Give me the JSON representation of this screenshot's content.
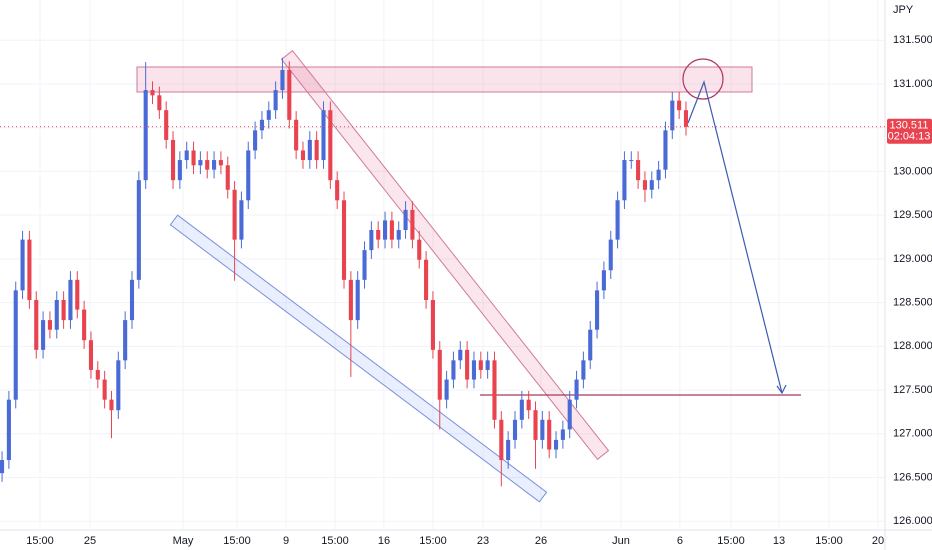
{
  "chart_data": {
    "type": "candlestick",
    "currency": "JPY",
    "up_color": "#4a6bd6",
    "down_color": "#e8434f",
    "open": [
      126.55,
      126.7,
      127.39,
      128.64,
      129.22,
      128.53,
      127.96,
      128.3,
      128.19,
      128.53,
      128.3,
      128.76,
      128.42,
      128.07,
      127.73,
      127.62,
      127.39,
      127.27,
      127.84,
      128.3,
      128.76,
      129.9,
      130.93,
      130.87,
      130.7,
      130.36,
      129.9,
      130.13,
      130.24,
      130.07,
      130.13,
      130.02,
      130.13,
      130.07,
      129.79,
      129.22,
      129.67,
      130.24,
      130.47,
      130.59,
      130.7,
      130.93,
      131.16,
      130.59,
      130.24,
      130.13,
      130.36,
      130.13,
      130.7,
      129.9,
      129.67,
      128.76,
      128.3,
      128.76,
      129.1,
      129.33,
      129.22,
      129.44,
      129.22,
      129.33,
      129.56,
      129.22,
      128.99,
      128.53,
      127.96,
      127.39,
      127.62,
      127.84,
      127.96,
      127.62,
      127.84,
      127.73,
      127.84,
      127.16,
      126.7,
      126.93,
      127.16,
      127.39,
      127.27,
      126.93,
      127.16,
      126.82,
      126.93,
      127.05,
      127.39,
      127.62,
      127.84,
      128.19,
      128.64,
      128.87,
      129.22,
      129.67,
      130.13,
      130.13,
      129.9,
      129.79,
      129.9,
      130.02,
      130.47,
      130.81,
      130.7
    ],
    "high": [
      126.8,
      127.49,
      128.74,
      129.32,
      129.32,
      128.63,
      128.4,
      128.4,
      128.63,
      128.63,
      128.86,
      128.86,
      128.52,
      128.17,
      127.83,
      127.72,
      127.49,
      127.94,
      128.4,
      128.86,
      130.0,
      131.25,
      131.03,
      130.97,
      130.8,
      130.46,
      130.23,
      130.34,
      130.34,
      130.23,
      130.23,
      130.23,
      130.23,
      130.17,
      129.89,
      129.77,
      130.34,
      130.57,
      130.69,
      130.8,
      131.03,
      131.3,
      131.26,
      130.69,
      130.34,
      130.46,
      130.46,
      130.8,
      130.8,
      130.0,
      129.77,
      128.86,
      128.86,
      129.2,
      129.43,
      129.43,
      129.54,
      129.54,
      129.43,
      129.66,
      129.66,
      129.32,
      129.09,
      128.63,
      128.06,
      127.72,
      127.94,
      128.06,
      128.06,
      127.94,
      127.94,
      127.94,
      127.94,
      127.26,
      127.03,
      127.26,
      127.49,
      127.49,
      127.37,
      127.26,
      127.26,
      127.03,
      127.15,
      127.49,
      127.72,
      127.94,
      128.29,
      128.74,
      128.97,
      129.32,
      129.77,
      130.23,
      130.23,
      130.23,
      130.0,
      130.0,
      130.12,
      130.57,
      130.91,
      130.91,
      130.8
    ],
    "low": [
      126.45,
      126.6,
      127.29,
      128.54,
      128.43,
      127.86,
      127.86,
      128.09,
      128.09,
      128.2,
      128.2,
      128.32,
      127.97,
      127.63,
      127.52,
      127.29,
      126.95,
      127.17,
      127.74,
      128.2,
      128.66,
      129.8,
      130.77,
      130.6,
      130.26,
      129.8,
      129.8,
      130.03,
      129.97,
      129.97,
      129.92,
      129.92,
      129.97,
      129.69,
      128.75,
      129.12,
      129.57,
      130.14,
      130.37,
      130.49,
      130.6,
      130.83,
      130.49,
      130.14,
      130.03,
      130.03,
      130.03,
      130.03,
      129.8,
      129.57,
      128.66,
      127.65,
      128.2,
      128.66,
      129.0,
      129.12,
      129.12,
      129.12,
      129.12,
      129.23,
      129.12,
      128.89,
      128.43,
      127.86,
      127.05,
      127.29,
      127.52,
      127.74,
      127.52,
      127.52,
      127.63,
      127.63,
      127.06,
      126.4,
      126.6,
      126.83,
      127.06,
      127.17,
      126.6,
      126.83,
      126.72,
      126.72,
      126.83,
      126.95,
      127.29,
      127.52,
      127.74,
      128.09,
      128.54,
      128.77,
      129.12,
      129.57,
      130.03,
      129.8,
      129.65,
      129.69,
      129.8,
      129.92,
      130.37,
      130.6,
      130.41
    ],
    "close": [
      126.7,
      127.39,
      128.64,
      129.22,
      128.53,
      127.96,
      128.3,
      128.19,
      128.53,
      128.3,
      128.76,
      128.42,
      128.07,
      127.73,
      127.62,
      127.39,
      127.27,
      127.84,
      128.3,
      128.76,
      129.9,
      130.93,
      130.87,
      130.7,
      130.36,
      129.9,
      130.13,
      130.24,
      130.07,
      130.13,
      130.02,
      130.13,
      130.07,
      129.79,
      129.22,
      129.67,
      130.24,
      130.47,
      130.59,
      130.7,
      130.93,
      131.16,
      130.59,
      130.24,
      130.13,
      130.36,
      130.13,
      130.7,
      129.9,
      129.67,
      128.76,
      128.3,
      128.76,
      129.1,
      129.33,
      129.22,
      129.44,
      129.22,
      129.33,
      129.56,
      129.22,
      128.99,
      128.53,
      127.96,
      127.39,
      127.62,
      127.84,
      127.96,
      127.62,
      127.84,
      127.73,
      127.84,
      127.16,
      126.7,
      126.93,
      127.16,
      127.39,
      127.27,
      126.93,
      127.16,
      126.82,
      126.93,
      127.05,
      127.39,
      127.62,
      127.84,
      128.19,
      128.64,
      128.87,
      129.22,
      129.67,
      130.13,
      130.13,
      129.9,
      129.79,
      129.9,
      130.02,
      130.47,
      130.81,
      130.7,
      130.51
    ],
    "xlim": [
      -0.3,
      129.1
    ],
    "ylim": [
      125.9,
      131.96
    ],
    "xticks": [
      {
        "value": 5.55,
        "label": "15:00"
      },
      {
        "value": 12.86,
        "label": "25"
      },
      {
        "value": 26.46,
        "label": "May"
      },
      {
        "value": 34.35,
        "label": "15:00"
      },
      {
        "value": 41.52,
        "label": "9"
      },
      {
        "value": 48.68,
        "label": "15:00"
      },
      {
        "value": 55.84,
        "label": "16"
      },
      {
        "value": 63.01,
        "label": "15:00"
      },
      {
        "value": 70.32,
        "label": "23"
      },
      {
        "value": 78.8,
        "label": "26"
      },
      {
        "value": 90.5,
        "label": "Jun"
      },
      {
        "value": 99.12,
        "label": "6"
      },
      {
        "value": 106.58,
        "label": "15:00"
      },
      {
        "value": 113.6,
        "label": "13"
      },
      {
        "value": 120.91,
        "label": "15:00"
      },
      {
        "value": 128.07,
        "label": "20"
      }
    ],
    "yticks": [
      {
        "value": 126,
        "label": "126.000"
      },
      {
        "value": 126.5,
        "label": "126.500"
      },
      {
        "value": 127,
        "label": "127.000"
      },
      {
        "value": 127.5,
        "label": "127.500"
      },
      {
        "value": 128,
        "label": "128.000"
      },
      {
        "value": 128.5,
        "label": "128.500"
      },
      {
        "value": 129,
        "label": "129.000"
      },
      {
        "value": 129.5,
        "label": "129.500"
      },
      {
        "value": 130,
        "label": "130.000"
      },
      {
        "value": 130.5,
        "label": "130.500"
      },
      {
        "value": 131,
        "label": "131.000"
      },
      {
        "value": 131.5,
        "label": "131.500"
      }
    ],
    "last_price": {
      "value": 130.511,
      "label": "130.511"
    },
    "countdown": "02:04:13"
  }
}
